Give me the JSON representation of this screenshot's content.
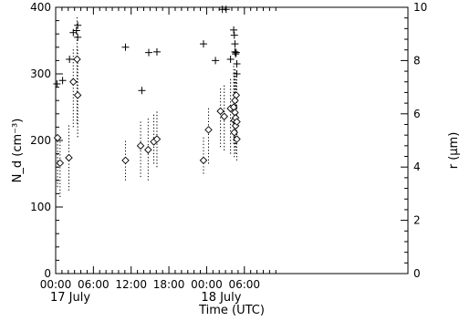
{
  "chart_data": {
    "type": "scatter",
    "xlabel": "Time (UTC)",
    "ylabel_left": "N_d (cm⁻³)",
    "ylabel_right": "r (μm)",
    "xlim": [
      0,
      56
    ],
    "ylim_left": [
      0,
      400
    ],
    "ylim_right": [
      0,
      10
    ],
    "x_ticks": [
      {
        "x": 0,
        "label": "00:00"
      },
      {
        "x": 6,
        "label": "06:00"
      },
      {
        "x": 12,
        "label": "12:00"
      },
      {
        "x": 18,
        "label": "18:00"
      },
      {
        "x": 24,
        "label": "00:00"
      },
      {
        "x": 30,
        "label": "06:00"
      }
    ],
    "x_minor_ticks": [
      1,
      2,
      3,
      4,
      5,
      7,
      8,
      9,
      10,
      11,
      13,
      14,
      15,
      16,
      17,
      19,
      20,
      21,
      22,
      23,
      25,
      26,
      27,
      28,
      29,
      31,
      32,
      33,
      34,
      35
    ],
    "y_ticks_left": [
      0,
      100,
      200,
      300,
      400
    ],
    "y_minor_left": [
      20,
      40,
      60,
      80,
      120,
      140,
      160,
      180,
      220,
      240,
      260,
      280,
      320,
      340,
      360,
      380
    ],
    "y_ticks_right": [
      0,
      2,
      4,
      6,
      8,
      10
    ],
    "y_minor_right": [
      0.4,
      0.8,
      1.2,
      1.6,
      2.4,
      2.8,
      3.2,
      3.6,
      4.4,
      4.8,
      5.2,
      5.6,
      6.4,
      6.8,
      7.2,
      7.6,
      8.4,
      8.8,
      9.2,
      9.6
    ],
    "date_labels": [
      {
        "x": 0,
        "label": "17 July"
      },
      {
        "x": 24,
        "label": "18 July"
      }
    ],
    "series": [
      {
        "marker": "plus",
        "axis": "left",
        "points": [
          [
            0.2,
            285
          ],
          [
            1.1,
            290
          ],
          [
            2.2,
            322
          ],
          [
            2.8,
            362
          ],
          [
            3.3,
            365
          ],
          [
            3.5,
            373
          ],
          [
            3.5,
            355
          ],
          [
            11.1,
            340
          ],
          [
            13.7,
            275
          ],
          [
            14.8,
            332
          ],
          [
            16.1,
            333
          ],
          [
            23.5,
            345
          ],
          [
            25.4,
            320
          ],
          [
            26.5,
            397
          ],
          [
            27.1,
            397
          ],
          [
            27.8,
            322
          ],
          [
            28.3,
            366
          ],
          [
            28.4,
            358
          ],
          [
            28.5,
            345
          ],
          [
            28.5,
            333
          ],
          [
            28.6,
            330
          ],
          [
            28.7,
            332
          ],
          [
            28.8,
            315
          ],
          [
            28.8,
            300
          ]
        ]
      },
      {
        "marker": "diamond",
        "axis": "right",
        "points": [
          [
            0.3,
            5.1
          ],
          [
            0.7,
            4.15
          ],
          [
            2.1,
            4.35
          ],
          [
            2.8,
            7.2
          ],
          [
            3.4,
            8.05
          ],
          [
            3.5,
            6.7
          ],
          [
            11.1,
            4.25
          ],
          [
            13.5,
            4.8
          ],
          [
            14.7,
            4.65
          ],
          [
            15.6,
            4.95
          ],
          [
            16.1,
            5.05
          ],
          [
            23.5,
            4.25
          ],
          [
            24.3,
            5.4
          ],
          [
            26.2,
            6.1
          ],
          [
            26.8,
            5.9
          ],
          [
            27.8,
            6.2
          ],
          [
            28.3,
            6.25
          ],
          [
            28.4,
            5.75
          ],
          [
            28.4,
            5.3
          ],
          [
            28.5,
            6.5
          ],
          [
            28.5,
            6.05
          ],
          [
            28.6,
            5.85
          ],
          [
            28.6,
            5.55
          ],
          [
            28.7,
            6.7
          ],
          [
            28.8,
            5.7
          ],
          [
            28.8,
            5.05
          ]
        ]
      }
    ],
    "error_bars": [
      [
        0.3,
        130,
        210
      ],
      [
        0.7,
        115,
        200
      ],
      [
        2.1,
        125,
        225
      ],
      [
        2.8,
        220,
        340
      ],
      [
        3.4,
        225,
        385
      ],
      [
        3.5,
        205,
        340
      ],
      [
        11.1,
        140,
        200
      ],
      [
        13.5,
        145,
        230
      ],
      [
        14.7,
        140,
        235
      ],
      [
        15.6,
        165,
        240
      ],
      [
        16.1,
        160,
        245
      ],
      [
        23.5,
        150,
        205
      ],
      [
        24.3,
        165,
        250
      ],
      [
        26.2,
        190,
        280
      ],
      [
        26.8,
        185,
        285
      ],
      [
        27.8,
        180,
        295
      ],
      [
        28.3,
        195,
        315
      ],
      [
        28.4,
        175,
        300
      ],
      [
        28.5,
        190,
        310
      ],
      [
        28.6,
        180,
        305
      ],
      [
        28.7,
        195,
        290
      ],
      [
        28.8,
        170,
        300
      ]
    ]
  }
}
